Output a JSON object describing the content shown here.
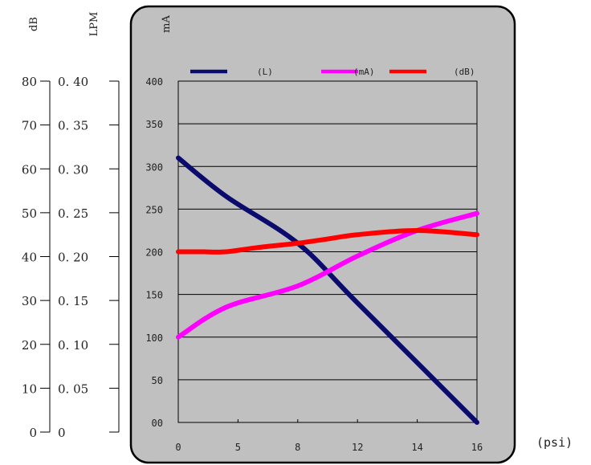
{
  "chart_data": {
    "type": "line",
    "xlabel": "(psi)",
    "x_ticks": [
      "0",
      "5",
      "8",
      "12",
      "14",
      "16"
    ],
    "x": [
      0,
      5,
      8,
      12,
      14,
      16
    ],
    "axes": {
      "dB": {
        "label": "dB",
        "ticks": [
          "0",
          "10",
          "20",
          "30",
          "40",
          "50",
          "60",
          "70",
          "80"
        ],
        "ylim": [
          0,
          80
        ]
      },
      "LPM": {
        "label": "LPM",
        "ticks": [
          "0",
          "0. 05",
          "0. 10",
          "0. 15",
          "0. 20",
          "0. 25",
          "0. 30",
          "0. 35",
          "0. 40"
        ],
        "ylim": [
          0,
          0.4
        ]
      },
      "mA": {
        "label": "mA",
        "ticks": [
          "00",
          "50",
          "100",
          "150",
          "200",
          "250",
          "300",
          "350",
          "400"
        ],
        "ylim": [
          0,
          400
        ]
      }
    },
    "grid": true,
    "legend_position": "top",
    "series": [
      {
        "name": "(L)",
        "color": "#0b0b6e",
        "axis": "LPM",
        "values": [
          0.31,
          0.26,
          0.21,
          0.14,
          0.08,
          0.0
        ]
      },
      {
        "name": "(mA)",
        "color": "#ff00ff",
        "axis": "mA",
        "values": [
          100,
          135,
          160,
          195,
          225,
          245
        ]
      },
      {
        "name": "(dB)",
        "color": "#ff0000",
        "axis": "dB",
        "values": [
          40,
          40,
          42,
          44,
          45,
          44
        ]
      }
    ],
    "curve_points": [
      {
        "x": [
          0,
          4,
          8,
          12,
          16
        ],
        "values": [
          0.31,
          0.265,
          0.21,
          0.14,
          0.0
        ]
      },
      {
        "x": [
          0,
          4,
          8,
          12,
          14,
          16
        ],
        "values": [
          100,
          135,
          160,
          195,
          225,
          245
        ]
      },
      {
        "x": [
          0,
          2,
          4,
          6,
          8,
          10,
          12,
          14,
          16
        ],
        "values": [
          40,
          40,
          40,
          41,
          42,
          43,
          44,
          45,
          44
        ]
      }
    ]
  }
}
